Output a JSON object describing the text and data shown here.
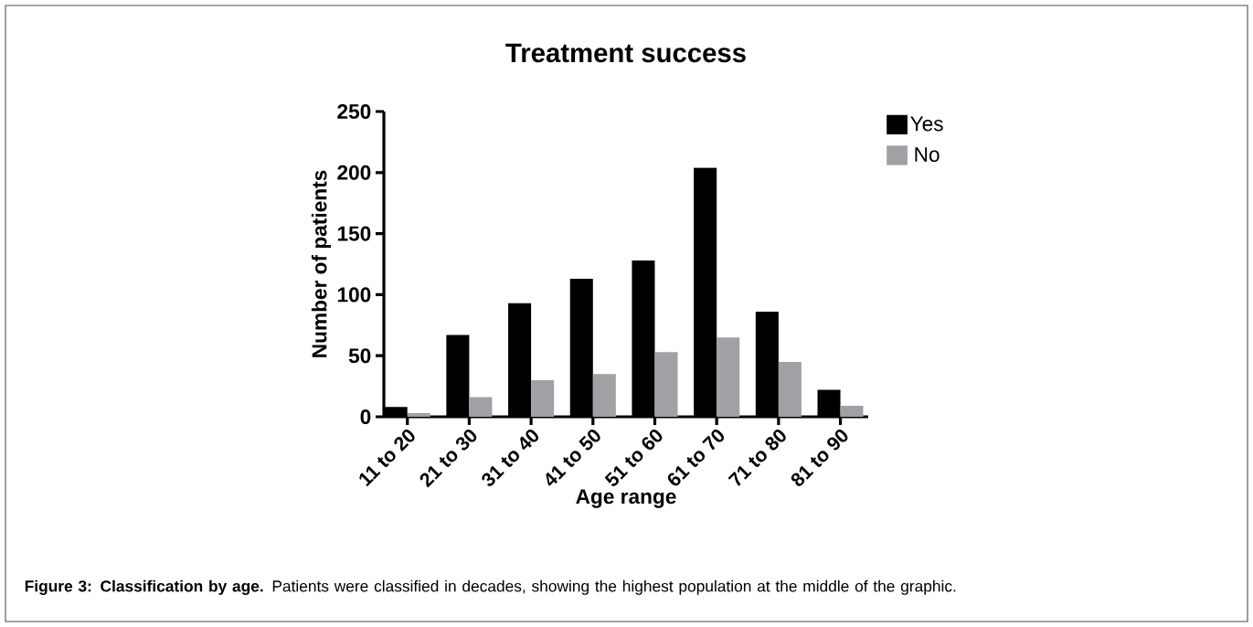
{
  "chart_data": {
    "type": "bar",
    "title": "Treatment success",
    "xlabel": "Age range",
    "ylabel": "Number of patients",
    "categories": [
      "11 to 20",
      "21 to 30",
      "31 to 40",
      "41 to 50",
      "51 to 60",
      "61 to 70",
      "71 to 80",
      "81 to 90"
    ],
    "series": [
      {
        "name": "Yes",
        "color": "#000000",
        "values": [
          8,
          67,
          93,
          113,
          128,
          204,
          86,
          22
        ]
      },
      {
        "name": "No",
        "color": "#a1a0a5",
        "values": [
          3,
          16,
          30,
          35,
          53,
          65,
          45,
          9
        ]
      }
    ],
    "ylim": [
      0,
      250
    ],
    "yticks": [
      0,
      50,
      100,
      150,
      200,
      250
    ],
    "legend": "top right",
    "annotations": [
      "**Figure 3: Classification by age.** Patients were classified in decades, showing the highest population at the middle of the graphic."
    ]
  }
}
